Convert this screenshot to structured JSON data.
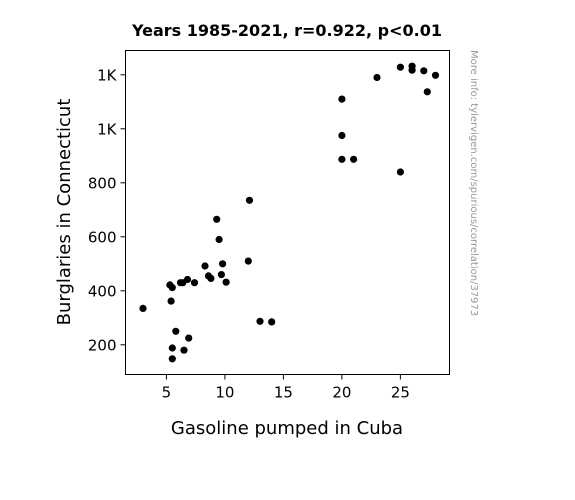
{
  "chart_data": {
    "type": "scatter",
    "title": "Years 1985-2021, r=0.922, p<0.01",
    "xlabel": "Gasoline pumped in Cuba",
    "ylabel": "Burglaries in Connecticut",
    "xlim": [
      1.5,
      29.2
    ],
    "ylim": [
      90,
      1290
    ],
    "x_ticks": [
      {
        "value": 5,
        "label": "5"
      },
      {
        "value": 10,
        "label": "10"
      },
      {
        "value": 15,
        "label": "15"
      },
      {
        "value": 20,
        "label": "20"
      },
      {
        "value": 25,
        "label": "25"
      }
    ],
    "y_ticks": [
      {
        "value": 200,
        "label": "200"
      },
      {
        "value": 400,
        "label": "400"
      },
      {
        "value": 600,
        "label": "600"
      },
      {
        "value": 800,
        "label": "800"
      },
      {
        "value": 1000,
        "label": "1K"
      },
      {
        "value": 1200,
        "label": "1K"
      }
    ],
    "grid": false,
    "marker_color": "#000000",
    "points": [
      {
        "x": 3.0,
        "y": 335
      },
      {
        "x": 5.3,
        "y": 422
      },
      {
        "x": 5.4,
        "y": 362
      },
      {
        "x": 5.5,
        "y": 412
      },
      {
        "x": 5.5,
        "y": 188
      },
      {
        "x": 5.5,
        "y": 148
      },
      {
        "x": 5.8,
        "y": 250
      },
      {
        "x": 6.2,
        "y": 430
      },
      {
        "x": 6.4,
        "y": 430
      },
      {
        "x": 6.5,
        "y": 180
      },
      {
        "x": 6.8,
        "y": 442
      },
      {
        "x": 6.9,
        "y": 225
      },
      {
        "x": 7.4,
        "y": 430
      },
      {
        "x": 8.3,
        "y": 492
      },
      {
        "x": 8.6,
        "y": 455
      },
      {
        "x": 8.8,
        "y": 446
      },
      {
        "x": 9.3,
        "y": 665
      },
      {
        "x": 9.5,
        "y": 590
      },
      {
        "x": 9.7,
        "y": 460
      },
      {
        "x": 9.8,
        "y": 500
      },
      {
        "x": 10.1,
        "y": 432
      },
      {
        "x": 12.0,
        "y": 510
      },
      {
        "x": 12.1,
        "y": 735
      },
      {
        "x": 13.0,
        "y": 287
      },
      {
        "x": 14.0,
        "y": 285
      },
      {
        "x": 20.0,
        "y": 1110
      },
      {
        "x": 20.0,
        "y": 975
      },
      {
        "x": 20.0,
        "y": 887
      },
      {
        "x": 21.0,
        "y": 887
      },
      {
        "x": 23.0,
        "y": 1190
      },
      {
        "x": 25.0,
        "y": 1228
      },
      {
        "x": 25.0,
        "y": 840
      },
      {
        "x": 26.0,
        "y": 1232
      },
      {
        "x": 26.0,
        "y": 1217
      },
      {
        "x": 27.0,
        "y": 1215
      },
      {
        "x": 27.3,
        "y": 1137
      },
      {
        "x": 28.0,
        "y": 1198
      }
    ]
  },
  "watermark": "More info: tylervigen.com/spurious/correlation/37973"
}
